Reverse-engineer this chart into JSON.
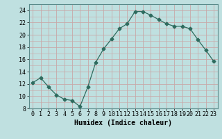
{
  "x": [
    0,
    1,
    2,
    3,
    4,
    5,
    6,
    7,
    8,
    9,
    10,
    11,
    12,
    13,
    14,
    15,
    16,
    17,
    18,
    19,
    20,
    21,
    22,
    23
  ],
  "y": [
    12.2,
    13.0,
    11.5,
    10.2,
    9.5,
    9.3,
    8.3,
    11.5,
    15.5,
    17.7,
    19.3,
    21.0,
    21.8,
    23.8,
    23.8,
    23.2,
    22.5,
    21.8,
    21.4,
    21.4,
    21.0,
    19.2,
    17.5,
    15.7
  ],
  "line_color": "#2e6b5e",
  "marker": "D",
  "marker_size": 2.5,
  "bg_color": "#bfe0e0",
  "grid_major_color": "#c8a8a8",
  "grid_minor_color": "#ffffff",
  "xlabel": "Humidex (Indice chaleur)",
  "xlim": [
    -0.5,
    23.5
  ],
  "ylim": [
    8,
    25
  ],
  "yticks": [
    8,
    10,
    12,
    14,
    16,
    18,
    20,
    22,
    24
  ],
  "xticks": [
    0,
    1,
    2,
    3,
    4,
    5,
    6,
    7,
    8,
    9,
    10,
    11,
    12,
    13,
    14,
    15,
    16,
    17,
    18,
    19,
    20,
    21,
    22,
    23
  ],
  "xlabel_fontsize": 7,
  "tick_fontsize": 6
}
